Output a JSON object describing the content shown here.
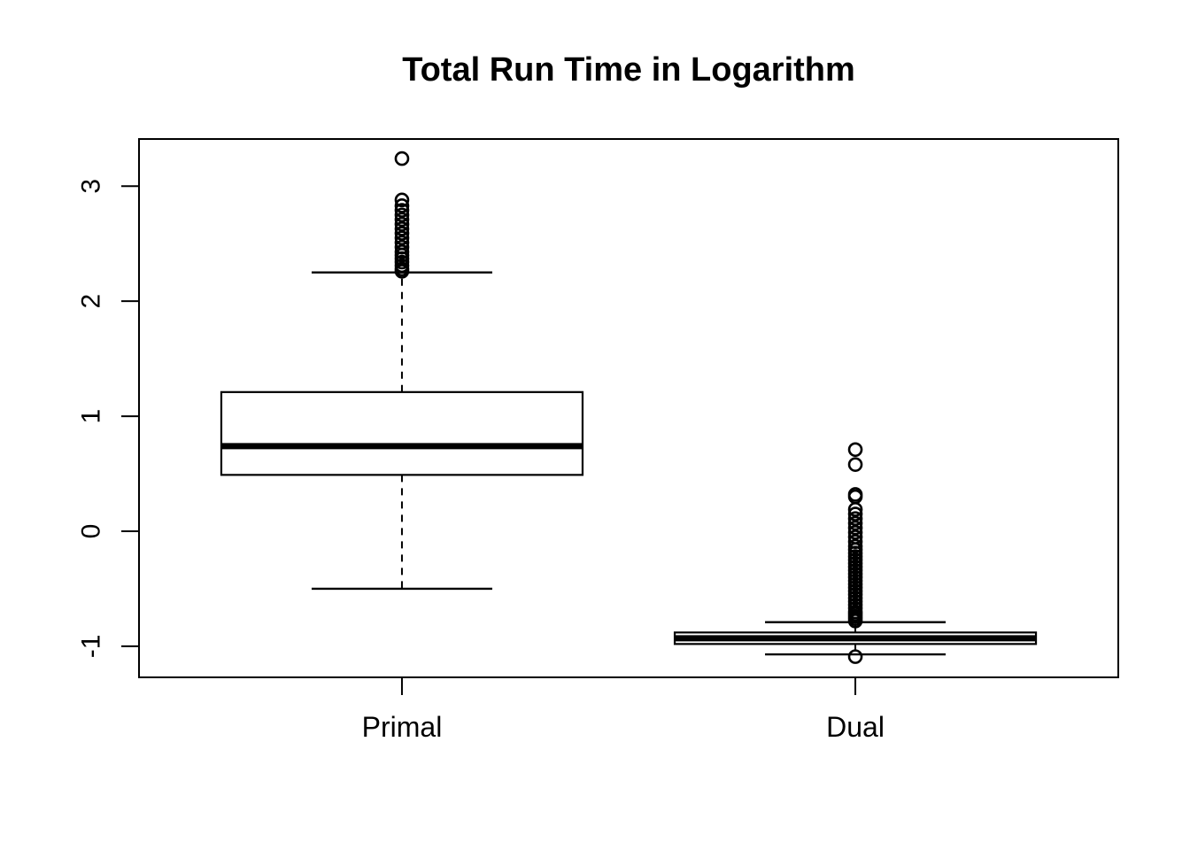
{
  "figure": {
    "background": "#ffffff",
    "stroke_color": "#000000"
  },
  "chart_data": {
    "type": "boxplot",
    "title": "Total Run Time in Logarithm",
    "xlabel": "",
    "ylabel": "",
    "categories": [
      "Primal",
      "Dual"
    ],
    "y_ticks": [
      -1,
      0,
      1,
      2,
      3
    ],
    "ylim": [
      -1.27,
      3.41
    ],
    "grid": false,
    "legend": "none",
    "series": [
      {
        "name": "Primal",
        "lower_whisker": -0.5,
        "q1": 0.49,
        "median": 0.74,
        "q3": 1.21,
        "upper_whisker": 2.25,
        "outliers": [
          3.24,
          2.88,
          2.83,
          2.79,
          2.75,
          2.71,
          2.67,
          2.63,
          2.59,
          2.55,
          2.51,
          2.47,
          2.43,
          2.4,
          2.37,
          2.34,
          2.31,
          2.28,
          2.26
        ]
      },
      {
        "name": "Dual",
        "lower_whisker": -1.07,
        "q1": -0.98,
        "median": -0.93,
        "q3": -0.88,
        "upper_whisker": -0.79,
        "outliers": [
          0.71,
          0.58,
          0.32,
          0.3,
          0.19,
          0.15,
          0.11,
          0.07,
          0.03,
          -0.01,
          -0.05,
          -0.09,
          -0.13,
          -0.16,
          -0.19,
          -0.22,
          -0.25,
          -0.28,
          -0.31,
          -0.34,
          -0.37,
          -0.4,
          -0.43,
          -0.46,
          -0.49,
          -0.52,
          -0.55,
          -0.58,
          -0.61,
          -0.64,
          -0.67,
          -0.7,
          -0.72,
          -0.74,
          -0.76,
          -0.78,
          -1.09
        ]
      }
    ]
  }
}
